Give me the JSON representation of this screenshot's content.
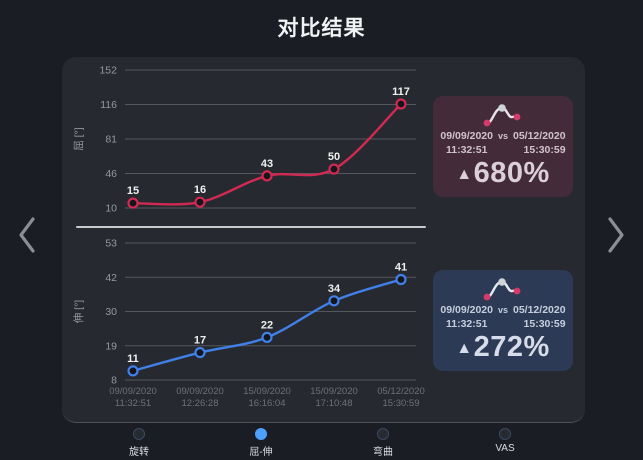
{
  "title": "对比结果",
  "nav": {
    "prev_label": "previous",
    "next_label": "next"
  },
  "chart_data": [
    {
      "type": "line",
      "title": "",
      "ylabel": "屈 [°]",
      "yticks": [
        152,
        116,
        81,
        46,
        10
      ],
      "ylim": [
        10,
        152
      ],
      "categories": [
        [
          "09/09/2020",
          "11:32:51"
        ],
        [
          "09/09/2020",
          "12:26:28"
        ],
        [
          "15/09/2020",
          "16:16:04"
        ],
        [
          "15/09/2020",
          "17:10:48"
        ],
        [
          "05/12/2020",
          "15:30:59"
        ]
      ],
      "values": [
        15,
        16,
        43,
        50,
        117
      ],
      "point_labels": [
        "15",
        "16",
        "43",
        "50",
        "117"
      ],
      "color": "#d02a52",
      "grid": true,
      "show_x_labels": false,
      "legend_position": "none"
    },
    {
      "type": "line",
      "title": "",
      "ylabel": "伸 [°]",
      "yticks": [
        53,
        42,
        30,
        19,
        8
      ],
      "ylim": [
        8,
        53
      ],
      "categories": [
        [
          "09/09/2020",
          "11:32:51"
        ],
        [
          "09/09/2020",
          "12:26:28"
        ],
        [
          "15/09/2020",
          "16:16:04"
        ],
        [
          "15/09/2020",
          "17:10:48"
        ],
        [
          "05/12/2020",
          "15:30:59"
        ]
      ],
      "values": [
        11,
        17,
        22,
        34,
        41
      ],
      "point_labels": [
        "11",
        "17",
        "22",
        "34",
        "41"
      ],
      "color": "#4080e8",
      "grid": true,
      "show_x_labels": true,
      "legend_position": "none"
    }
  ],
  "comparison_cards": [
    {
      "date_from": "09/09/2020",
      "time_from": "11:32:51",
      "vs": "vs",
      "date_to": "05/12/2020",
      "time_to": "15:30:59",
      "trend": "▲",
      "percent": "680%",
      "bg": "#432b3a",
      "text_color": "#cfc3ca",
      "percent_color": "#dbd0d7",
      "accent": "#d63a6a",
      "icon_stroke": "#e9e3e6",
      "icon_peak": "#cfd2d6"
    },
    {
      "date_from": "09/09/2020",
      "time_from": "11:32:51",
      "vs": "vs",
      "date_to": "05/12/2020",
      "time_to": "15:30:59",
      "trend": "▲",
      "percent": "272%",
      "bg": "#2c3a55",
      "text_color": "#c6cedd",
      "percent_color": "#d6dce9",
      "accent": "#d63a6a",
      "icon_stroke": "#e6e9ee",
      "icon_peak": "#cfd2d6"
    }
  ],
  "tabs": [
    {
      "label": "旋转",
      "selected": false
    },
    {
      "label": "屈-伸",
      "selected": true
    },
    {
      "label": "弯曲",
      "selected": false
    },
    {
      "label": "VAS",
      "selected": false
    }
  ],
  "theme": {
    "page_bg": "#1a1d24",
    "panel_bg": "#26292f",
    "grid_color": "#54575d",
    "tick_color": "#96989d",
    "xlabel_color": "#6e7177",
    "data_label_color": "#f0f0f0",
    "point_fill": "#14161b",
    "arrow_color": "#8b8e94"
  }
}
